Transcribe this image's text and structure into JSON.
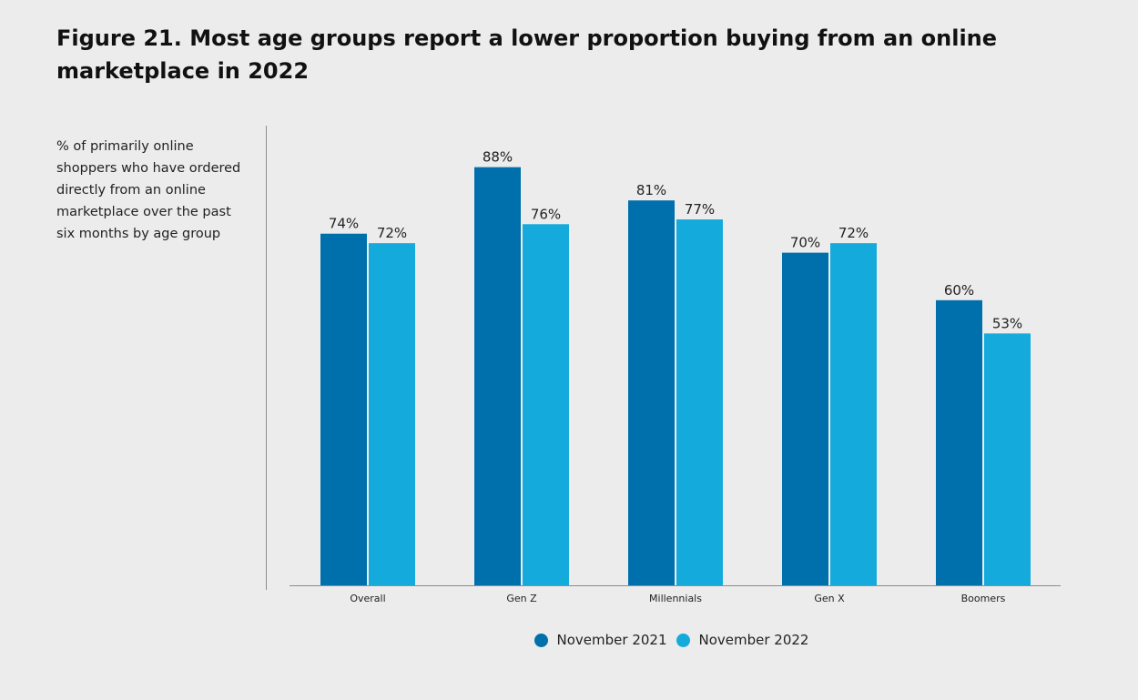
{
  "figure": {
    "title": "Figure 21. Most age groups report a lower proportion buying from an online marketplace in 2022",
    "subtitle": "% of primarily online shoppers who have ordered directly from an online marketplace over the past six months by age group"
  },
  "colors": {
    "background": "#ececec",
    "series_2021": "#0070ad",
    "series_2022": "#14abdc",
    "axis": "#8c8c8c"
  },
  "chart_data": {
    "type": "bar",
    "title": "Figure 21. Most age groups report a lower proportion buying from an online marketplace in 2022",
    "subtitle": "% of primarily online shoppers who have ordered directly from an online marketplace over the past six months by age group",
    "categories": [
      "Overall",
      "Gen Z",
      "Millennials",
      "Gen X",
      "Boomers"
    ],
    "series": [
      {
        "name": "November 2021",
        "values": [
          74,
          88,
          81,
          70,
          60
        ],
        "labels": [
          "74%",
          "88%",
          "81%",
          "70%",
          "60%"
        ],
        "color": "#0070ad"
      },
      {
        "name": "November 2022",
        "values": [
          72,
          76,
          77,
          72,
          53
        ],
        "labels": [
          "72%",
          "76%",
          "77%",
          "72%",
          "53%"
        ],
        "color": "#14abdc"
      }
    ],
    "xlabel": "",
    "ylabel": "",
    "ylim": [
      0,
      100
    ],
    "grid": false,
    "legend_position": "bottom-center"
  },
  "legend": {
    "items": [
      {
        "label": "November 2021",
        "color": "#0070ad"
      },
      {
        "label": "November 2022",
        "color": "#14abdc"
      }
    ]
  }
}
